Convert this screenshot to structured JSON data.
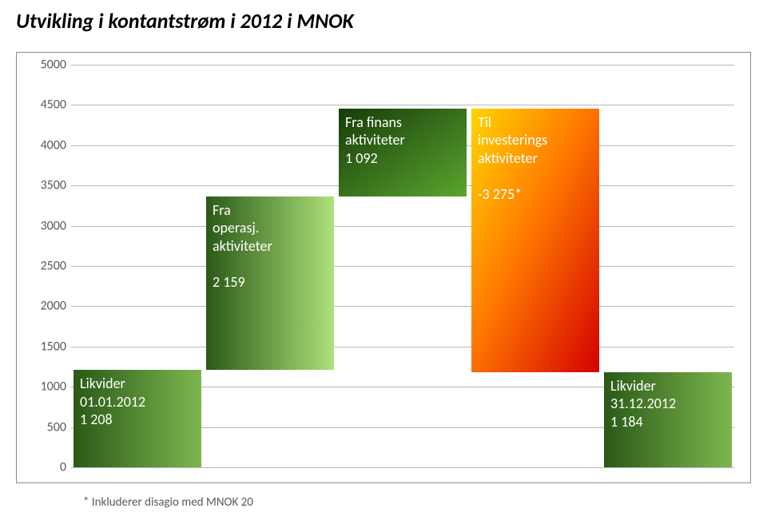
{
  "title": "Utvikling i kontantstrøm i 2012 i MNOK",
  "footnote": "* Inkluderer disagio med MNOK 20",
  "chart": {
    "type": "waterfall",
    "background_color": "#ffffff",
    "grid_color": "#b7b7b7",
    "border_color": "#8a8a8a",
    "ylim_min": 0,
    "ylim_max": 5000,
    "ytick_step": 500,
    "yticks": [
      0,
      500,
      1000,
      1500,
      2000,
      2500,
      3000,
      3500,
      4000,
      4500,
      5000
    ],
    "label_fontsize": 16,
    "label_color": "#5a5a5a",
    "bar_label_color": "#ffffff",
    "bar_label_fontsize": 18,
    "bars": [
      {
        "name": "likvider-start",
        "base": 0,
        "top": 1208,
        "label_lines": [
          "Likvider",
          "01.01.2012",
          "1 208"
        ],
        "gradient_from": "#2a5a17",
        "gradient_to": "#7db64f",
        "gradient_dir": "to right"
      },
      {
        "name": "fra-operasj",
        "base": 1208,
        "top": 3367,
        "label_lines": [
          "Fra",
          "operasj.",
          "aktiviteter",
          "",
          "2 159"
        ],
        "gradient_from": "#2a5a17",
        "gradient_to": "#aee07a",
        "gradient_dir": "to right"
      },
      {
        "name": "fra-finans",
        "base": 3367,
        "top": 4459,
        "label_lines": [
          "Fra finans",
          "aktiviteter",
          "1 092"
        ],
        "gradient_from": "#163c09",
        "gradient_to": "#5aa52e",
        "gradient_dir": "to bottom right"
      },
      {
        "name": "til-investering",
        "base": 1184,
        "top": 4459,
        "label_lines": [
          "Til",
          "investerings",
          "aktiviteter",
          "",
          "-3 275*"
        ],
        "gradient_from": "#ffd400",
        "gradient_mid": "#ff7a00",
        "gradient_to": "#d40000",
        "gradient_dir": "to bottom right"
      },
      {
        "name": "likvider-end",
        "base": 0,
        "top": 1184,
        "label_lines": [
          "Likvider",
          "31.12.2012",
          "1 184"
        ],
        "gradient_from": "#2a5a17",
        "gradient_to": "#7db64f",
        "gradient_dir": "to right"
      }
    ]
  }
}
